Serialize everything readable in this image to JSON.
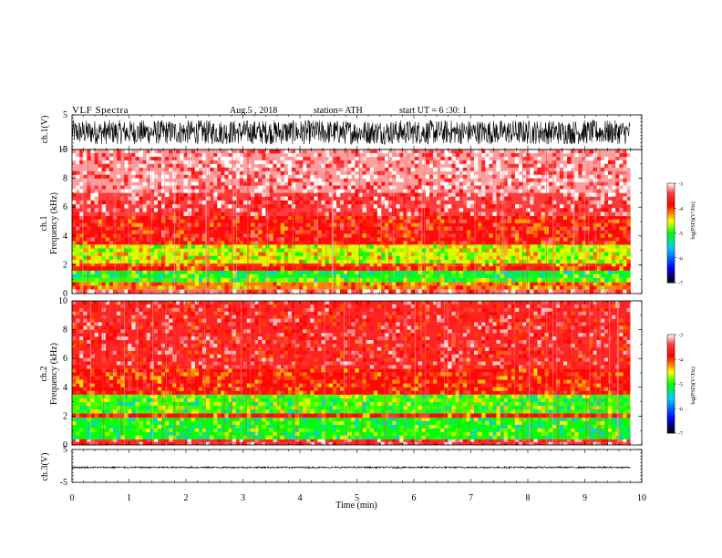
{
  "header": {
    "title": "VLF  Spectra",
    "date": "Aug.5  , 2018",
    "station": "station= ATH",
    "start": "start  UT  =    6  :30: 1"
  },
  "chart_data": [
    {
      "type": "line",
      "panel": "ch1-waveform",
      "ylabel": "ch.1(V)",
      "ylim": [
        -5,
        5
      ],
      "yticks": [
        "5",
        "-5"
      ],
      "xlim": [
        0,
        10
      ],
      "data_extent_min": [
        0,
        9.8
      ],
      "amplitude_band_V": [
        -3.5,
        3.5
      ],
      "color": "#000000"
    },
    {
      "type": "heatmap",
      "panel": "ch1-spectrogram",
      "ylabel": "Frequency  (kHz)",
      "channel_label": "ch.1",
      "ylim": [
        0,
        10
      ],
      "yticks": [
        "0",
        "2",
        "4",
        "6",
        "8",
        "10"
      ],
      "xlim": [
        0,
        10
      ],
      "data_extent_min": [
        0,
        9.8
      ],
      "bands": [
        {
          "f0": 0.0,
          "f1": 0.3,
          "level": -3.3
        },
        {
          "f0": 0.3,
          "f1": 0.8,
          "level": -4.2
        },
        {
          "f0": 0.8,
          "f1": 1.1,
          "level": -4.9
        },
        {
          "f0": 1.1,
          "f1": 1.6,
          "level": -5.1
        },
        {
          "f0": 1.6,
          "f1": 1.9,
          "level": -3.9
        },
        {
          "f0": 1.9,
          "f1": 2.1,
          "level": -4.0
        },
        {
          "f0": 2.1,
          "f1": 3.4,
          "level": -4.6
        },
        {
          "f0": 3.4,
          "f1": 5.4,
          "level": -3.8
        },
        {
          "f0": 5.4,
          "f1": 7.0,
          "level": -3.4
        },
        {
          "f0": 7.0,
          "f1": 10.0,
          "level": -3.2
        }
      ]
    },
    {
      "type": "heatmap",
      "panel": "ch2-spectrogram",
      "ylabel": "Frequency  (kHz)",
      "channel_label": "ch.2",
      "ylim": [
        0,
        10
      ],
      "yticks": [
        "0",
        "2",
        "4",
        "6",
        "8",
        "10"
      ],
      "xlim": [
        0,
        10
      ],
      "data_extent_min": [
        0,
        9.8
      ],
      "bands": [
        {
          "f0": 0.0,
          "f1": 0.4,
          "level": -3.5
        },
        {
          "f0": 0.4,
          "f1": 1.9,
          "level": -5.0
        },
        {
          "f0": 1.9,
          "f1": 2.2,
          "level": -3.9
        },
        {
          "f0": 2.2,
          "f1": 3.5,
          "level": -4.9
        },
        {
          "f0": 3.5,
          "f1": 5.3,
          "level": -3.9
        },
        {
          "f0": 5.3,
          "f1": 10.0,
          "level": -3.6
        }
      ]
    },
    {
      "type": "line",
      "panel": "ch3-waveform",
      "ylabel": "ch.3(V)",
      "ylim": [
        -5,
        5
      ],
      "yticks": [
        "5",
        "-5"
      ],
      "xlim": [
        0,
        10
      ],
      "data_extent_min": [
        0,
        9.8
      ],
      "level_V": -0.5,
      "amplitude_band_V": [
        -0.7,
        -0.2
      ],
      "color": "#000000",
      "xlabel": "Time  (min)",
      "xticks": [
        "0",
        "1",
        "2",
        "3",
        "4",
        "5",
        "6",
        "7",
        "8",
        "9",
        "10"
      ]
    }
  ],
  "colorbar": {
    "label": "log(PSD)(V²/Hz)",
    "range": [
      -7,
      -3
    ],
    "ticks": [
      "-3",
      "-4",
      "-5",
      "-6",
      "-7"
    ],
    "colormap": [
      "#000000",
      "#0000ff",
      "#00ccff",
      "#00ff00",
      "#ffff00",
      "#ff0000",
      "#ffffff"
    ]
  }
}
